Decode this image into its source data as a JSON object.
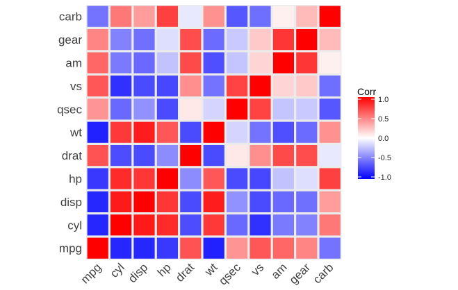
{
  "chart_data": {
    "type": "heatmap",
    "variables": [
      "mpg",
      "cyl",
      "disp",
      "hp",
      "drat",
      "wt",
      "qsec",
      "vs",
      "am",
      "gear",
      "carb"
    ],
    "x_categories": [
      "mpg",
      "cyl",
      "disp",
      "hp",
      "drat",
      "wt",
      "qsec",
      "vs",
      "am",
      "gear",
      "carb"
    ],
    "y_categories_bottom_to_top": [
      "mpg",
      "cyl",
      "disp",
      "hp",
      "drat",
      "wt",
      "qsec",
      "vs",
      "am",
      "gear",
      "carb"
    ],
    "matrix": [
      [
        1.0,
        -0.85,
        -0.85,
        -0.78,
        0.68,
        -0.87,
        0.42,
        0.66,
        0.6,
        0.48,
        -0.55
      ],
      [
        -0.85,
        1.0,
        0.9,
        0.83,
        -0.7,
        0.78,
        -0.59,
        -0.81,
        -0.52,
        -0.49,
        0.53
      ],
      [
        -0.85,
        0.9,
        1.0,
        0.79,
        -0.71,
        0.89,
        -0.43,
        -0.71,
        -0.59,
        -0.56,
        0.39
      ],
      [
        -0.78,
        0.83,
        0.79,
        1.0,
        -0.45,
        0.66,
        -0.71,
        -0.72,
        -0.24,
        -0.13,
        0.75
      ],
      [
        0.68,
        -0.7,
        -0.71,
        -0.45,
        1.0,
        -0.71,
        0.09,
        0.44,
        0.71,
        0.7,
        -0.09
      ],
      [
        -0.87,
        0.78,
        0.89,
        0.66,
        -0.71,
        1.0,
        -0.17,
        -0.55,
        -0.69,
        -0.58,
        0.43
      ],
      [
        0.42,
        -0.59,
        -0.43,
        -0.71,
        0.09,
        -0.17,
        1.0,
        0.74,
        -0.23,
        -0.21,
        -0.66
      ],
      [
        0.66,
        -0.81,
        -0.71,
        -0.72,
        0.44,
        -0.55,
        0.74,
        1.0,
        0.17,
        0.21,
        -0.57
      ],
      [
        0.6,
        -0.52,
        -0.59,
        -0.24,
        0.71,
        -0.69,
        -0.23,
        0.17,
        1.0,
        0.79,
        0.06
      ],
      [
        0.48,
        -0.49,
        -0.56,
        -0.13,
        0.7,
        -0.58,
        -0.21,
        0.21,
        0.79,
        1.0,
        0.27
      ],
      [
        -0.55,
        0.53,
        0.39,
        0.75,
        -0.09,
        0.43,
        -0.66,
        -0.57,
        0.06,
        0.27,
        1.0
      ]
    ],
    "legend": {
      "title": "Corr",
      "placement": "right",
      "ticks": [
        1.0,
        0.5,
        0.0,
        -0.5,
        -1.0
      ],
      "tick_labels": [
        "1.0",
        "0.5",
        "0.0",
        "-0.5",
        "-1.0"
      ],
      "range": [
        -1.0,
        1.0
      ]
    },
    "colors": {
      "low": "#0000ff",
      "mid": "#ffffff",
      "high": "#ff0000"
    },
    "panel_background": "#ebebeb",
    "tile_border": "#ffffff",
    "grid": false,
    "title": "",
    "xlabel": "",
    "ylabel": ""
  }
}
